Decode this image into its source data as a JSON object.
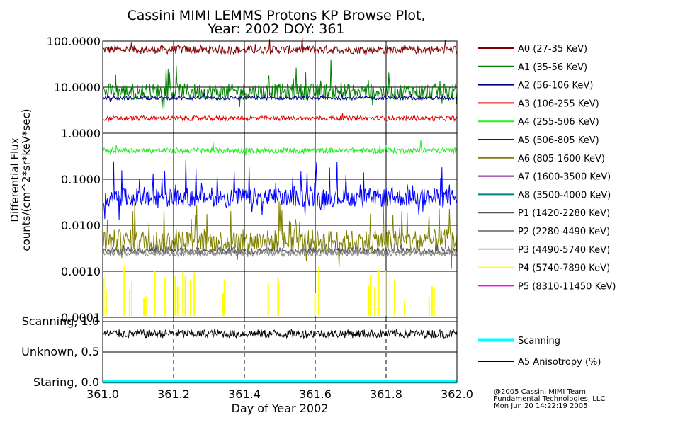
{
  "chart_data": [
    {
      "type": "line",
      "title": [
        "Cassini MIMI LEMMS Protons KP Browse Plot,",
        "Year: 2002 DOY: 361"
      ],
      "xlabel": "Day of Year 2002",
      "ylabel": [
        "Differential Flux",
        "counts/(cm^2*sr*keV*sec)"
      ],
      "yscale": "log",
      "xlim": [
        361.0,
        362.0
      ],
      "ylim": [
        0.0001,
        100.0
      ],
      "x_ticks": [
        361.0,
        361.2,
        361.4,
        361.6,
        361.8,
        362.0
      ],
      "x_tick_labels": [
        "361.0",
        "361.2",
        "361.4",
        "361.6",
        "361.8",
        "362.0"
      ],
      "y_ticks": [
        100.0,
        10.0,
        1.0,
        0.1,
        0.01,
        0.001,
        0.0001
      ],
      "y_tick_labels": [
        "100.0000",
        "10.0000",
        "1.0000",
        "0.1000",
        "0.0100",
        "0.0010",
        "0.0001"
      ],
      "series": [
        {
          "name": "A0 (27-35 KeV)",
          "color": "#800000",
          "level": 65,
          "spread": 0.09,
          "spikes": 0.08,
          "visible": true
        },
        {
          "name": "A1 (35-56 KeV)",
          "color": "#008000",
          "level": 8,
          "spread": 0.18,
          "spikes": 0.25,
          "visible": true
        },
        {
          "name": "A2 (56-106 KeV)",
          "color": "#000080",
          "level": 5.8,
          "spread": 0.04,
          "spikes": 0.05,
          "visible": true
        },
        {
          "name": "A3 (106-255 KeV)",
          "color": "#e00000",
          "level": 2.1,
          "spread": 0.05,
          "spikes": 0.05,
          "visible": true
        },
        {
          "name": "A4 (255-506 KeV)",
          "color": "#22ee22",
          "level": 0.42,
          "spread": 0.06,
          "spikes": 0.1,
          "visible": true
        },
        {
          "name": "A5 (506-805 KeV)",
          "color": "#0000ff",
          "level": 0.04,
          "spread": 0.2,
          "spikes": 0.6,
          "visible": true
        },
        {
          "name": "A6 (805-1600 KeV)",
          "color": "#808000",
          "level": 0.0045,
          "spread": 0.25,
          "spikes": 0.5,
          "visible": true
        },
        {
          "name": "A7 (1600-3500 KeV)",
          "color": "#800080",
          "level": null,
          "visible": false
        },
        {
          "name": "A8 (3500-4000 KeV)",
          "color": "#008080",
          "level": null,
          "visible": false
        },
        {
          "name": "P1 (1420-2280 KeV)",
          "color": "#555555",
          "level": 0.0028,
          "spread": 0.07,
          "spikes": 0.1,
          "visible": true
        },
        {
          "name": "P2 (2280-4490 KeV)",
          "color": "#888888",
          "level": 0.0025,
          "spread": 0.07,
          "spikes": 0.1,
          "visible": true
        },
        {
          "name": "P3 (4490-5740 KeV)",
          "color": "#c0c0c0",
          "level": null,
          "visible": false
        },
        {
          "name": "P4 (5740-7890 KeV)",
          "color": "#ffff00",
          "level": 0.00018,
          "spread": 0.1,
          "spikes": 0.3,
          "visible": "sparse"
        },
        {
          "name": "P5 (8310-11450 KeV)",
          "color": "#ff00ff",
          "level": null,
          "visible": false
        }
      ]
    },
    {
      "type": "line",
      "xlabel": "Day of Year 2002",
      "xlim": [
        361.0,
        362.0
      ],
      "ylim": [
        0.0,
        1.0
      ],
      "y_ticks": [
        1.0,
        0.5,
        0.0
      ],
      "y_tick_labels": [
        "Scanning, 1.0",
        "Unknown, 0.5",
        "Staring, 0.0"
      ],
      "series": [
        {
          "name": "Scanning",
          "color": "#00ffff",
          "level": 0.0,
          "note": "constant 0.0 (staring)"
        },
        {
          "name": "A5 Anisotropy (%)",
          "color": "#000000",
          "level": 0.8,
          "spread": 0.07
        }
      ]
    }
  ],
  "credits": [
    "@2005 Cassini MIMI Team",
    "Fundamental Technologies, LLC",
    "Mon Jun 20 14:22:19 2005"
  ]
}
